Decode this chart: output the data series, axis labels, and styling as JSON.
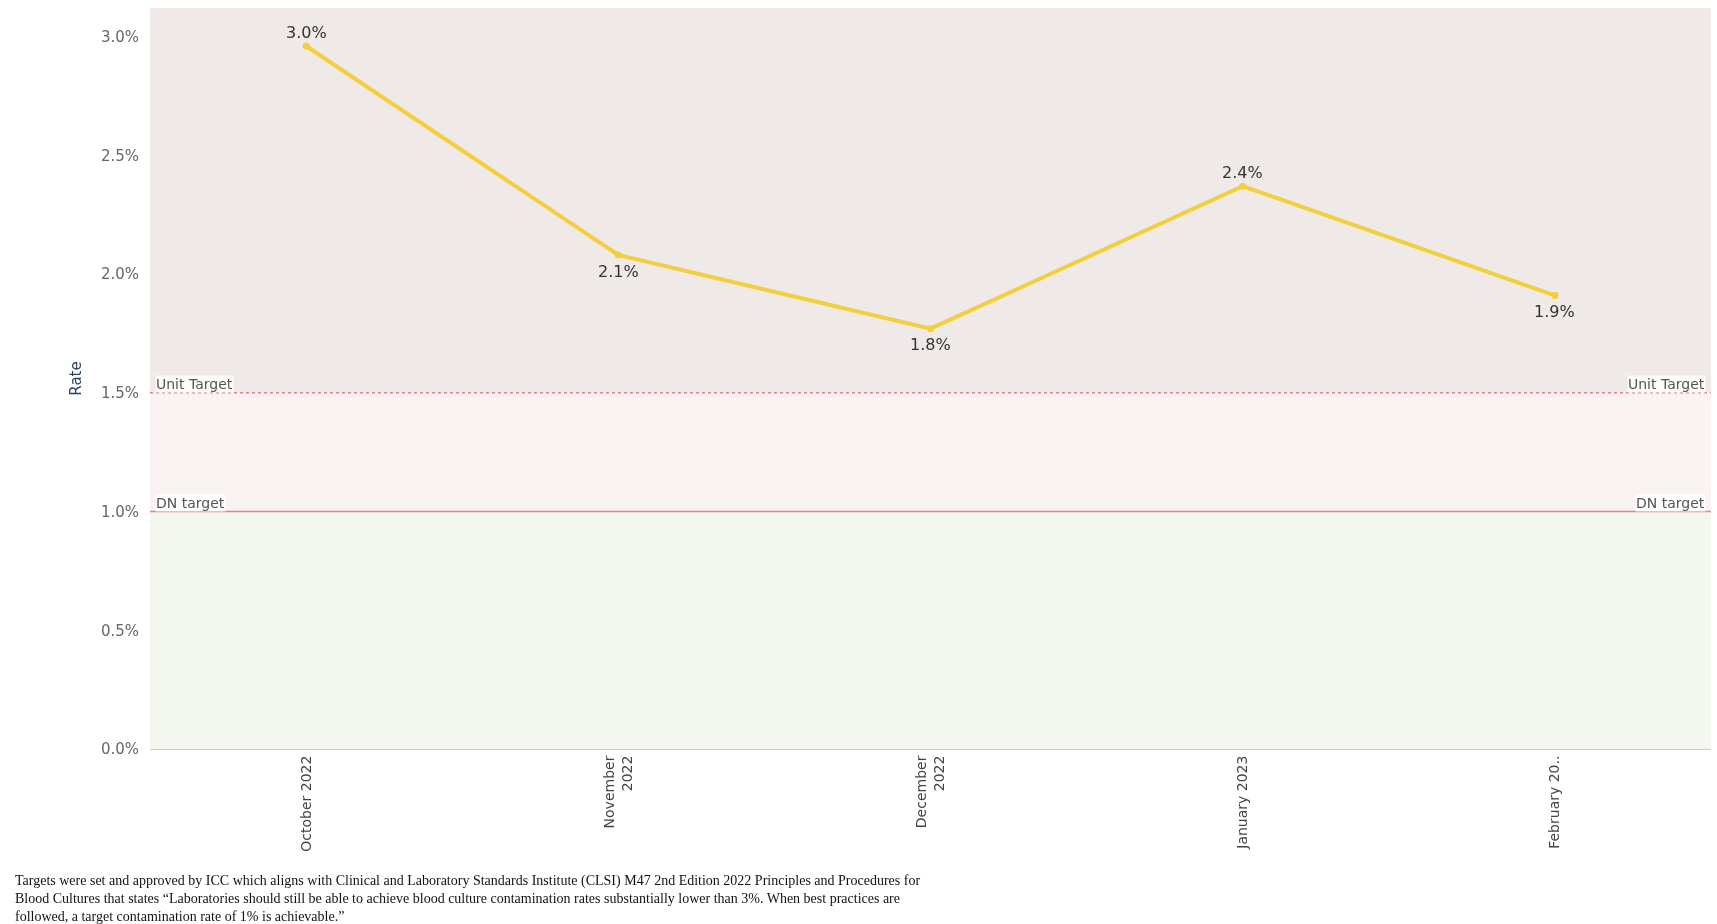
{
  "chart_data": {
    "type": "line",
    "ylabel": "Rate",
    "categories": [
      "October 2022",
      "November\n2022",
      "December\n2022",
      "January 2023",
      "February 20.."
    ],
    "series": [
      {
        "color": "#f2cf3f",
        "values": [
          2.96,
          2.08,
          1.77,
          2.37,
          1.91
        ],
        "value_labels": [
          "3.0%",
          "2.1%",
          "1.8%",
          "2.4%",
          "1.9%"
        ]
      }
    ],
    "ylim": [
      0,
      3.12
    ],
    "yticks": [
      {
        "value": 0,
        "label": "0.0%"
      },
      {
        "value": 0.5,
        "label": "0.5%"
      },
      {
        "value": 1,
        "label": "1.0%"
      },
      {
        "value": 1.5,
        "label": "1.5%"
      },
      {
        "value": 2,
        "label": "2.0%"
      },
      {
        "value": 2.5,
        "label": "2.5%"
      },
      {
        "value": 3,
        "label": "3.0%"
      }
    ],
    "bands": [
      {
        "axis": "y",
        "from": 1.5,
        "to": 3.12,
        "color": "#efe9e7"
      },
      {
        "axis": "y",
        "from": 1.0,
        "to": 1.5,
        "color": "#f9f3f3"
      },
      {
        "axis": "y",
        "from": 0,
        "to": 1.0,
        "color": "#f4f7ef"
      }
    ],
    "ref_lines": [
      {
        "axis": "y",
        "value": 1.5,
        "label": "Unit Target",
        "color": "#e8828a",
        "line_style": "dotted"
      },
      {
        "axis": "y",
        "value": 1.0,
        "label": "DN target",
        "color": "#f08080",
        "line_style": "solid"
      }
    ],
    "grid": false,
    "marker": "circle",
    "line_style": "solid",
    "annotations": [
      "Targets were set and approved by ICC which aligns with Clinical and Laboratory Standards Institute (CLSI) M47 2nd Edition 2022 Principles and Procedures for\nBlood Cultures that states “Laboratories should still be able to achieve blood culture contamination rates substantially lower than 3%. When best practices are\nfollowed, a target contamination rate of 1% is achievable.”"
    ]
  }
}
